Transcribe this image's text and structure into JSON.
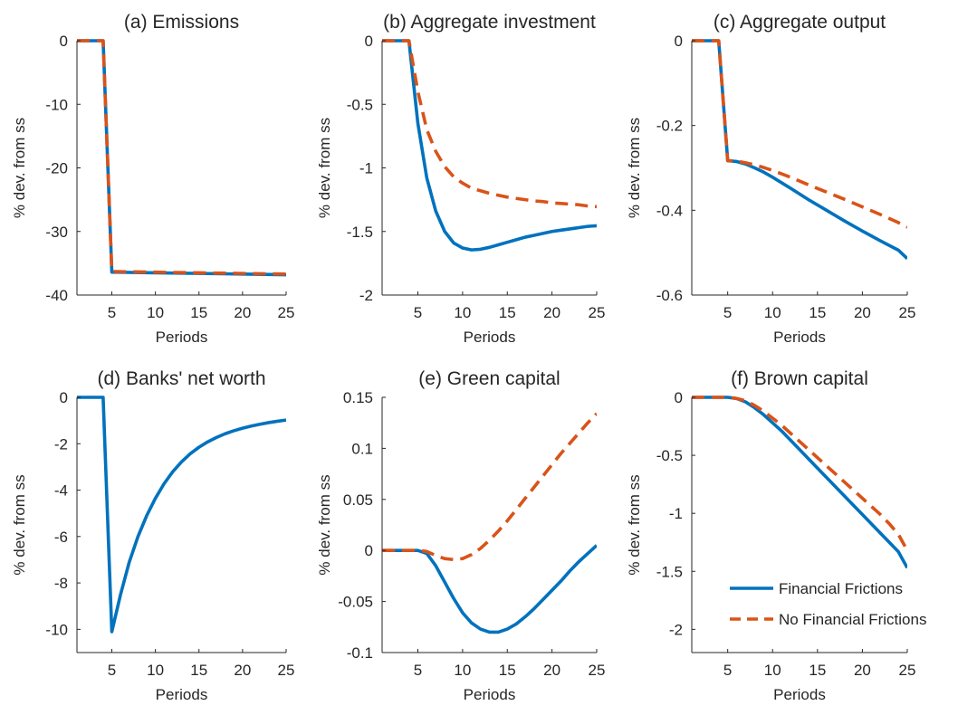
{
  "colors": {
    "financial_frictions": "#0072BD",
    "no_financial_frictions": "#D95319",
    "axis": "#262626",
    "background": "#ffffff"
  },
  "legend": {
    "placement": "bottom-right of panel (f)",
    "entries": [
      {
        "label": "Financial Frictions",
        "style": "solid"
      },
      {
        "label": "No Financial Frictions",
        "style": "dashed"
      }
    ]
  },
  "chart_data": [
    {
      "type": "line",
      "title": "(a) Emissions",
      "xlabel": "Periods",
      "ylabel": "% dev. from ss",
      "xlim": [
        1,
        25
      ],
      "ylim": [
        -40,
        0
      ],
      "xticks": [
        5,
        10,
        15,
        20,
        25
      ],
      "xtick_labels": [
        "5",
        "10",
        "15",
        "20",
        "25"
      ],
      "yticks": [
        0,
        -10,
        -20,
        -30,
        -40
      ],
      "ytick_labels": [
        "0",
        "-10",
        "-20",
        "-30",
        "-40"
      ],
      "series": [
        {
          "name": "Financial Frictions",
          "x": [
            1,
            2,
            3,
            4,
            5,
            10,
            15,
            20,
            25
          ],
          "y": [
            0,
            0,
            0,
            0,
            -36.4,
            -36.5,
            -36.6,
            -36.7,
            -36.8
          ]
        },
        {
          "name": "No Financial Frictions",
          "x": [
            1,
            2,
            3,
            4,
            5,
            10,
            15,
            20,
            25
          ],
          "y": [
            0,
            0,
            0,
            0,
            -36.3,
            -36.4,
            -36.5,
            -36.6,
            -36.7
          ]
        }
      ]
    },
    {
      "type": "line",
      "title": "(b) Aggregate investment",
      "xlabel": "Periods",
      "ylabel": "% dev. from ss",
      "xlim": [
        1,
        25
      ],
      "ylim": [
        -2,
        0
      ],
      "xticks": [
        5,
        10,
        15,
        20,
        25
      ],
      "xtick_labels": [
        "5",
        "10",
        "15",
        "20",
        "25"
      ],
      "yticks": [
        0,
        -0.5,
        -1,
        -1.5,
        -2
      ],
      "ytick_labels": [
        "0",
        "-0.5",
        "-1",
        "-1.5",
        "-2"
      ],
      "series": [
        {
          "name": "Financial Frictions",
          "x": [
            1,
            2,
            3,
            4,
            5,
            6,
            7,
            8,
            9,
            10,
            11,
            12,
            13,
            14,
            15,
            16,
            17,
            18,
            19,
            20,
            21,
            22,
            23,
            24,
            25
          ],
          "y": [
            0,
            0,
            0,
            0,
            -0.65,
            -1.08,
            -1.34,
            -1.5,
            -1.59,
            -1.63,
            -1.645,
            -1.64,
            -1.625,
            -1.605,
            -1.585,
            -1.565,
            -1.545,
            -1.53,
            -1.515,
            -1.5,
            -1.49,
            -1.48,
            -1.47,
            -1.46,
            -1.455
          ]
        },
        {
          "name": "No Financial Frictions",
          "x": [
            1,
            2,
            3,
            4,
            5,
            6,
            7,
            8,
            9,
            10,
            11,
            12,
            13,
            14,
            15,
            16,
            17,
            18,
            19,
            20,
            21,
            22,
            23,
            24,
            25
          ],
          "y": [
            0,
            0,
            0,
            0,
            -0.4,
            -0.7,
            -0.87,
            -0.99,
            -1.07,
            -1.12,
            -1.16,
            -1.18,
            -1.2,
            -1.215,
            -1.23,
            -1.24,
            -1.25,
            -1.26,
            -1.265,
            -1.275,
            -1.28,
            -1.285,
            -1.29,
            -1.3,
            -1.305
          ]
        }
      ]
    },
    {
      "type": "line",
      "title": "(c) Aggregate output",
      "xlabel": "Periods",
      "ylabel": "% dev. from ss",
      "xlim": [
        1,
        25
      ],
      "ylim": [
        -0.6,
        0
      ],
      "xticks": [
        5,
        10,
        15,
        20,
        25
      ],
      "xtick_labels": [
        "5",
        "10",
        "15",
        "20",
        "25"
      ],
      "yticks": [
        0,
        -0.2,
        -0.4,
        -0.6
      ],
      "ytick_labels": [
        "0",
        "-0.2",
        "-0.4",
        "-0.6"
      ],
      "series": [
        {
          "name": "Financial Frictions",
          "x": [
            1,
            2,
            3,
            4,
            5,
            6,
            7,
            8,
            9,
            10,
            12,
            14,
            16,
            18,
            20,
            22,
            24,
            25
          ],
          "y": [
            0,
            0,
            0,
            0,
            -0.283,
            -0.285,
            -0.291,
            -0.3,
            -0.31,
            -0.322,
            -0.348,
            -0.375,
            -0.4,
            -0.425,
            -0.449,
            -0.472,
            -0.494,
            -0.514
          ]
        },
        {
          "name": "No Financial Frictions",
          "x": [
            1,
            2,
            3,
            4,
            5,
            6,
            7,
            8,
            9,
            10,
            12,
            14,
            16,
            18,
            20,
            22,
            24,
            25
          ],
          "y": [
            0,
            0,
            0,
            0,
            -0.283,
            -0.284,
            -0.288,
            -0.293,
            -0.299,
            -0.306,
            -0.322,
            -0.34,
            -0.357,
            -0.374,
            -0.392,
            -0.41,
            -0.429,
            -0.44
          ]
        }
      ]
    },
    {
      "type": "line",
      "title": "(d) Banks' net worth",
      "xlabel": "Periods",
      "ylabel": "% dev. from ss",
      "xlim": [
        1,
        25
      ],
      "ylim": [
        -11,
        0
      ],
      "xticks": [
        5,
        10,
        15,
        20,
        25
      ],
      "xtick_labels": [
        "5",
        "10",
        "15",
        "20",
        "25"
      ],
      "yticks": [
        0,
        -2,
        -4,
        -6,
        -8,
        -10
      ],
      "ytick_labels": [
        "0",
        "-2",
        "-4",
        "-6",
        "-8",
        "-10"
      ],
      "series": [
        {
          "name": "Financial Frictions",
          "x": [
            1,
            2,
            3,
            4,
            5,
            6,
            7,
            8,
            9,
            10,
            11,
            12,
            13,
            14,
            15,
            16,
            17,
            18,
            19,
            20,
            21,
            22,
            23,
            24,
            25
          ],
          "y": [
            0,
            0,
            0,
            0,
            -10.1,
            -8.5,
            -7.1,
            -6.0,
            -5.1,
            -4.35,
            -3.72,
            -3.2,
            -2.78,
            -2.43,
            -2.15,
            -1.92,
            -1.73,
            -1.57,
            -1.44,
            -1.33,
            -1.24,
            -1.16,
            -1.09,
            -1.03,
            -0.98
          ]
        }
      ]
    },
    {
      "type": "line",
      "title": "(e) Green capital",
      "xlabel": "Periods",
      "ylabel": "% dev. from ss",
      "xlim": [
        1,
        25
      ],
      "ylim": [
        -0.1,
        0.15
      ],
      "xticks": [
        5,
        10,
        15,
        20,
        25
      ],
      "xtick_labels": [
        "5",
        "10",
        "15",
        "20",
        "25"
      ],
      "yticks": [
        0.15,
        0.1,
        0.05,
        0,
        -0.05,
        -0.1
      ],
      "ytick_labels": [
        "0.15",
        "0.1",
        "0.05",
        "0",
        "-0.05",
        "-0.1"
      ],
      "series": [
        {
          "name": "Financial Frictions",
          "x": [
            1,
            2,
            3,
            4,
            5,
            6,
            7,
            8,
            9,
            10,
            11,
            12,
            13,
            14,
            15,
            16,
            17,
            18,
            19,
            20,
            21,
            22,
            23,
            24,
            25
          ],
          "y": [
            0,
            0,
            0,
            0,
            0,
            -0.003,
            -0.015,
            -0.031,
            -0.047,
            -0.061,
            -0.071,
            -0.077,
            -0.08,
            -0.08,
            -0.077,
            -0.072,
            -0.065,
            -0.057,
            -0.048,
            -0.039,
            -0.03,
            -0.02,
            -0.011,
            -0.003,
            0.005
          ]
        },
        {
          "name": "No Financial Frictions",
          "x": [
            1,
            2,
            3,
            4,
            5,
            6,
            7,
            8,
            9,
            10,
            11,
            12,
            13,
            14,
            15,
            16,
            17,
            18,
            19,
            20,
            21,
            22,
            23,
            24,
            25
          ],
          "y": [
            0,
            0,
            0,
            0,
            0,
            -0.001,
            -0.005,
            -0.008,
            -0.009,
            -0.008,
            -0.004,
            0.002,
            0.01,
            0.019,
            0.029,
            0.04,
            0.051,
            0.062,
            0.073,
            0.084,
            0.095,
            0.105,
            0.115,
            0.125,
            0.134
          ]
        }
      ]
    },
    {
      "type": "line",
      "title": "(f) Brown capital",
      "xlabel": "Periods",
      "ylabel": "% dev. from ss",
      "xlim": [
        1,
        25
      ],
      "ylim": [
        -2.2,
        0
      ],
      "xticks": [
        5,
        10,
        15,
        20,
        25
      ],
      "xtick_labels": [
        "5",
        "10",
        "15",
        "20",
        "25"
      ],
      "yticks": [
        0,
        -0.5,
        -1,
        -1.5,
        -2
      ],
      "ytick_labels": [
        "0",
        "-0.5",
        "-1",
        "-1.5",
        "-2"
      ],
      "series": [
        {
          "name": "Financial Frictions",
          "x": [
            1,
            2,
            3,
            4,
            5,
            6,
            7,
            8,
            9,
            10,
            11,
            12,
            13,
            14,
            15,
            16,
            17,
            18,
            19,
            20,
            21,
            22,
            23,
            24,
            25
          ],
          "y": [
            0,
            0,
            0,
            0,
            0,
            -0.01,
            -0.04,
            -0.09,
            -0.15,
            -0.22,
            -0.29,
            -0.37,
            -0.45,
            -0.53,
            -0.61,
            -0.69,
            -0.77,
            -0.85,
            -0.93,
            -1.01,
            -1.09,
            -1.17,
            -1.25,
            -1.33,
            -1.47
          ]
        },
        {
          "name": "No Financial Frictions",
          "x": [
            1,
            2,
            3,
            4,
            5,
            6,
            7,
            8,
            9,
            10,
            11,
            12,
            13,
            14,
            15,
            16,
            17,
            18,
            19,
            20,
            21,
            22,
            23,
            24,
            25
          ],
          "y": [
            0,
            0,
            0,
            0,
            0,
            -0.01,
            -0.03,
            -0.07,
            -0.12,
            -0.18,
            -0.24,
            -0.31,
            -0.38,
            -0.45,
            -0.52,
            -0.59,
            -0.66,
            -0.73,
            -0.8,
            -0.87,
            -0.94,
            -1.01,
            -1.09,
            -1.18,
            -1.32
          ]
        }
      ]
    }
  ]
}
